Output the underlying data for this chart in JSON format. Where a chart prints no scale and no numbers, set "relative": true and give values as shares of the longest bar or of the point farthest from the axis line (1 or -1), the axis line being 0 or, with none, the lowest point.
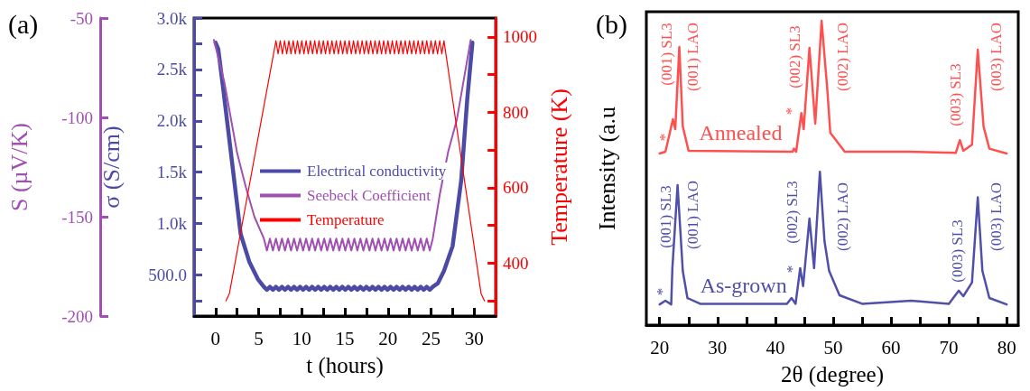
{
  "chart_data": [
    {
      "type": "line",
      "title": "(a)",
      "xlabel": "t (hours)",
      "ylabel": "σ (S/cm)",
      "y2label": "Temperature (K)",
      "y3label": "S (µV/K)",
      "xlim": [
        -2.5,
        32.5
      ],
      "xticks": [
        0,
        {
          "value": 2.5,
          "label": null
        },
        5,
        {
          "value": 7.5,
          "label": null
        },
        10,
        {
          "value": 12.5,
          "label": null
        },
        15,
        {
          "value": 17.5,
          "label": null
        },
        20,
        {
          "value": 22.5,
          "label": null
        },
        25,
        {
          "value": 27.5,
          "label": null
        },
        30
      ],
      "ylim": [
        100,
        3000
      ],
      "yticks": [
        {
          "value": 250,
          "label": null
        },
        {
          "value": 500,
          "label": "500.0"
        },
        {
          "value": 750,
          "label": null
        },
        {
          "value": 1000,
          "label": "1.0k"
        },
        {
          "value": 1250,
          "label": null
        },
        {
          "value": 1500,
          "label": "1.5k"
        },
        {
          "value": 1750,
          "label": null
        },
        {
          "value": 2000,
          "label": "2.0k"
        },
        {
          "value": 2250,
          "label": null
        },
        {
          "value": 2500,
          "label": "2.5k"
        },
        {
          "value": 2750,
          "label": null
        },
        {
          "value": 3000,
          "label": "3.0k"
        }
      ],
      "y2lim": [
        260,
        1050
      ],
      "y2ticks": [
        {
          "value": 300,
          "label": null
        },
        400,
        {
          "value": 500,
          "label": null
        },
        600,
        {
          "value": 700,
          "label": null
        },
        800,
        {
          "value": 900,
          "label": null
        },
        1000
      ],
      "y3lim": [
        -200,
        -50
      ],
      "y3ticks": [
        -200,
        -150,
        -100,
        -50
      ],
      "legend": "left",
      "series": [
        {
          "name": "Electrical conductivity",
          "color": "#4b4ba6",
          "axis": "y",
          "x": [
            0,
            0.3,
            0.9,
            1.9,
            2.9,
            3.9,
            4.9,
            5.6,
            5.95,
            6.3,
            6.65,
            7,
            7.35,
            7.7,
            8.05,
            8.4,
            8.75,
            9.1,
            9.45,
            9.8,
            10.15,
            10.5,
            10.85,
            11.2,
            11.55,
            11.9,
            12.25,
            12.6,
            12.95,
            13.3,
            13.65,
            14,
            14.35,
            14.7,
            15.05,
            15.4,
            15.75,
            16.1,
            16.45,
            16.8,
            17.15,
            17.5,
            17.85,
            18.2,
            18.55,
            18.9,
            19.25,
            19.6,
            19.95,
            20.3,
            20.65,
            21,
            21.35,
            21.7,
            22.05,
            22.4,
            22.75,
            23.1,
            23.45,
            23.8,
            24.15,
            24.5,
            24.85,
            25.2,
            25.8,
            26.5,
            27.5,
            28.5,
            29.2,
            29.8
          ],
          "values": [
            2760,
            2700,
            2300,
            1600,
            900,
            630,
            460,
            385,
            355,
            385,
            355,
            385,
            355,
            385,
            355,
            385,
            355,
            385,
            355,
            385,
            355,
            385,
            355,
            385,
            355,
            385,
            355,
            385,
            355,
            385,
            355,
            385,
            355,
            385,
            355,
            385,
            355,
            385,
            355,
            385,
            355,
            385,
            355,
            385,
            355,
            385,
            355,
            385,
            355,
            385,
            355,
            385,
            355,
            385,
            355,
            385,
            355,
            385,
            355,
            385,
            355,
            385,
            355,
            385,
            420,
            540,
            780,
            1420,
            2210,
            2760
          ]
        },
        {
          "name": "Seebeck Coefficient",
          "color": "#a050b0",
          "axis": "y3",
          "x": [
            -0.2,
            1,
            2.5,
            3.5,
            4.5,
            5.6,
            5.95,
            6.3,
            6.65,
            7,
            7.35,
            7.7,
            8.05,
            8.4,
            8.75,
            9.1,
            9.45,
            9.8,
            10.15,
            10.5,
            10.85,
            11.2,
            11.55,
            11.9,
            12.25,
            12.6,
            12.95,
            13.3,
            13.65,
            14,
            14.35,
            14.7,
            15.05,
            15.4,
            15.75,
            16.1,
            16.45,
            16.8,
            17.15,
            17.5,
            17.85,
            18.2,
            18.55,
            18.9,
            19.25,
            19.6,
            19.95,
            20.3,
            20.65,
            21,
            21.35,
            21.7,
            22.05,
            22.4,
            22.75,
            23.1,
            23.45,
            23.8,
            24.15,
            24.5,
            24.85,
            25.2,
            26,
            27,
            28,
            29.6
          ],
          "values": [
            -61,
            -82,
            -118,
            -135,
            -150,
            -161,
            -167,
            -161,
            -167,
            -161,
            -167,
            -161,
            -167,
            -161,
            -167,
            -161,
            -167,
            -161,
            -167,
            -161,
            -167,
            -161,
            -167,
            -161,
            -167,
            -161,
            -167,
            -161,
            -167,
            -161,
            -167,
            -161,
            -167,
            -161,
            -167,
            -161,
            -167,
            -161,
            -167,
            -161,
            -167,
            -161,
            -167,
            -161,
            -167,
            -161,
            -167,
            -161,
            -167,
            -161,
            -167,
            -161,
            -167,
            -161,
            -167,
            -161,
            -167,
            -161,
            -167,
            -161,
            -167,
            -161,
            -139,
            -117,
            -101,
            -61
          ]
        },
        {
          "name": "Temperature",
          "color": "#ff0000",
          "axis": "y2",
          "x": [
            1.2,
            1.6,
            7,
            7.25,
            7.5,
            7.75,
            8,
            8.25,
            8.5,
            8.75,
            9,
            9.25,
            9.5,
            9.75,
            10,
            10.25,
            10.5,
            10.75,
            11,
            11.25,
            11.5,
            11.75,
            12,
            12.25,
            12.5,
            12.75,
            13,
            13.25,
            13.5,
            13.75,
            14,
            14.25,
            14.5,
            14.75,
            15,
            15.25,
            15.5,
            15.75,
            16,
            16.25,
            16.5,
            16.75,
            17,
            17.25,
            17.5,
            17.75,
            18,
            18.25,
            18.5,
            18.75,
            19,
            19.25,
            19.5,
            19.75,
            20,
            20.25,
            20.5,
            20.75,
            21,
            21.25,
            21.5,
            21.75,
            22,
            22.25,
            22.5,
            22.75,
            23,
            23.25,
            23.5,
            23.75,
            24,
            24.25,
            24.5,
            24.75,
            25,
            25.25,
            25.5,
            25.75,
            26,
            26.25,
            26.5,
            30.8,
            31.2
          ],
          "values": [
            300,
            320,
            990,
            955,
            990,
            955,
            990,
            955,
            990,
            955,
            990,
            955,
            990,
            955,
            990,
            955,
            990,
            955,
            990,
            955,
            990,
            955,
            990,
            955,
            990,
            955,
            990,
            955,
            990,
            955,
            990,
            955,
            990,
            955,
            990,
            955,
            990,
            955,
            990,
            955,
            990,
            955,
            990,
            955,
            990,
            955,
            990,
            955,
            990,
            955,
            990,
            955,
            990,
            955,
            990,
            955,
            990,
            955,
            990,
            955,
            990,
            955,
            990,
            955,
            990,
            955,
            990,
            955,
            990,
            955,
            990,
            955,
            990,
            955,
            990,
            955,
            990,
            955,
            990,
            955,
            990,
            320,
            300
          ]
        }
      ]
    },
    {
      "type": "line",
      "title": "(b)",
      "xlabel": "2θ (degree)",
      "ylabel": "Intensity (a.u",
      "relative": true,
      "tick_labels": "x",
      "legend": false,
      "xlim": [
        17.7,
        82
      ],
      "xticks": [
        20,
        {
          "value": 25,
          "label": null
        },
        30,
        {
          "value": 35,
          "label": null
        },
        40,
        {
          "value": 45,
          "label": null
        },
        50,
        {
          "value": 55,
          "label": null
        },
        60,
        {
          "value": 65,
          "label": null
        },
        70,
        {
          "value": 75,
          "label": null
        },
        80
      ],
      "series": [
        {
          "name": "Annealed",
          "color": "#ff5050",
          "x": [
            20,
            21,
            22.3,
            22.7,
            23.4,
            24,
            25,
            43,
            43.2,
            43.6,
            44.5,
            44.9,
            45.9,
            46.9,
            48,
            49,
            49.5,
            52,
            63.5,
            71.2,
            71.9,
            72.5,
            74,
            75,
            76,
            77,
            80
          ],
          "values": [
            0.564,
            0.57,
            0.677,
            0.644,
            0.914,
            0.653,
            0.573,
            0.57,
            0.58,
            0.57,
            0.697,
            0.644,
            0.911,
            0.662,
            1,
            0.771,
            0.632,
            0.57,
            0.57,
            0.566,
            0.608,
            0.573,
            0.593,
            0.905,
            0.653,
            0.58,
            0.564
          ]
        },
        {
          "name": "As-grown",
          "color": "#5050aa",
          "x": [
            20,
            21,
            22,
            22.2,
            23.1,
            24,
            24.8,
            27,
            42,
            42.8,
            43.5,
            44.3,
            44.8,
            45.9,
            46.7,
            47.7,
            48.5,
            49.3,
            51.1,
            55,
            63.5,
            70,
            71.7,
            72.5,
            74,
            75,
            75.8,
            77,
            80
          ],
          "values": [
            0.068,
            0.08,
            0.068,
            0.187,
            0.46,
            0.178,
            0.089,
            0.07,
            0.07,
            0.089,
            0.07,
            0.187,
            0.128,
            0.35,
            0.187,
            0.504,
            0.276,
            0.178,
            0.098,
            0.07,
            0.08,
            0.07,
            0.113,
            0.095,
            0.14,
            0.42,
            0.178,
            0.089,
            0.068
          ]
        }
      ],
      "annotations": [
        "(001) SL3",
        "(001) LAO",
        "(002) SL3",
        "(002) LAO",
        "(003) SL3",
        "(003) LAO",
        "*",
        "*",
        "(001) SL3",
        "(001) LAO",
        "(002) SL3",
        "(002) LAO",
        "(003) SL3",
        "(003) LAO",
        "*",
        "*"
      ]
    }
  ]
}
